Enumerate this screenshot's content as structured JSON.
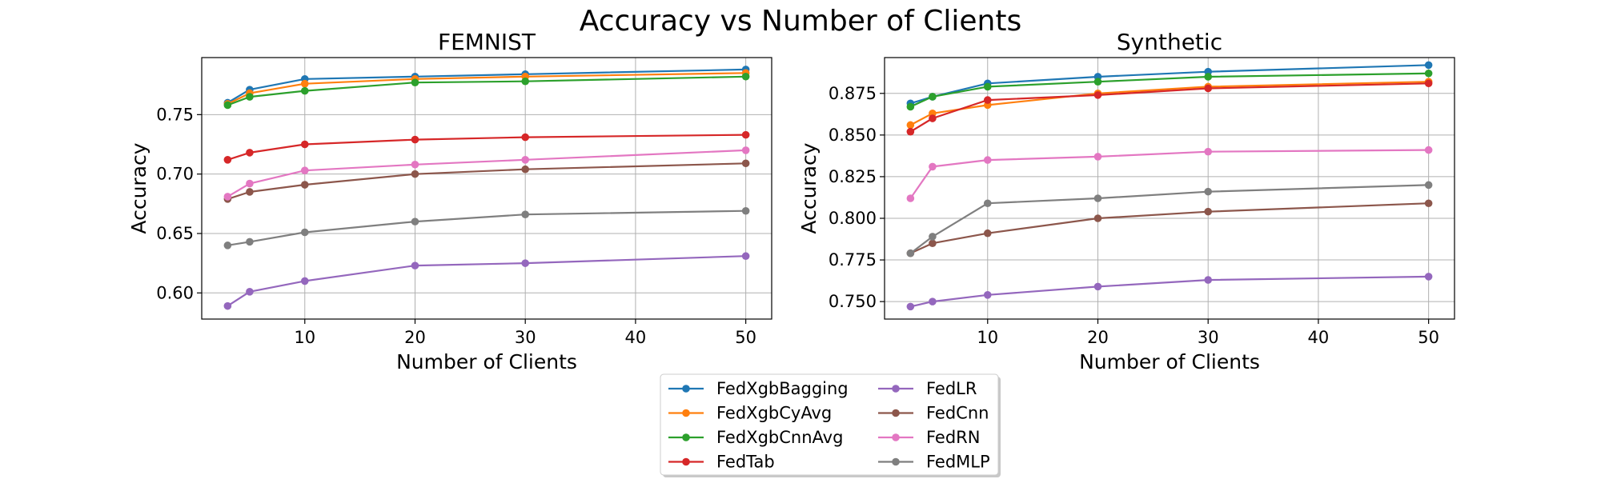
{
  "figure": {
    "suptitle": "Accuracy vs Number of Clients",
    "legend_placement": "bottom-center"
  },
  "chart_data": [
    {
      "type": "line",
      "title": "FEMNIST",
      "xlabel": "Number of Clients",
      "ylabel": "Accuracy",
      "xlim": [
        0.65,
        52.35
      ],
      "ylim": [
        0.578,
        0.798
      ],
      "xticks": [
        10,
        20,
        30,
        40,
        50
      ],
      "yticks": [
        0.6,
        0.65,
        0.7,
        0.75
      ],
      "ytick_labels": [
        "0.60",
        "0.65",
        "0.70",
        "0.75"
      ],
      "grid": true,
      "x": [
        3,
        5,
        10,
        20,
        30,
        50
      ],
      "series": [
        {
          "name": "FedXgbBagging",
          "color": "#1f77b4",
          "values": [
            0.76,
            0.771,
            0.78,
            0.782,
            0.784,
            0.788
          ]
        },
        {
          "name": "FedXgbCyAvg",
          "color": "#ff7f0e",
          "values": [
            0.759,
            0.768,
            0.776,
            0.78,
            0.782,
            0.785
          ]
        },
        {
          "name": "FedXgbCnnAvg",
          "color": "#2ca02c",
          "values": [
            0.758,
            0.765,
            0.77,
            0.777,
            0.778,
            0.782
          ]
        },
        {
          "name": "FedTab",
          "color": "#d62728",
          "values": [
            0.712,
            0.718,
            0.725,
            0.729,
            0.731,
            0.733
          ]
        },
        {
          "name": "FedLR",
          "color": "#9467bd",
          "values": [
            0.589,
            0.601,
            0.61,
            0.623,
            0.625,
            0.631
          ]
        },
        {
          "name": "FedCnn",
          "color": "#8c564b",
          "values": [
            0.679,
            0.685,
            0.691,
            0.7,
            0.704,
            0.709
          ]
        },
        {
          "name": "FedRN",
          "color": "#e377c2",
          "values": [
            0.681,
            0.692,
            0.703,
            0.708,
            0.712,
            0.72
          ]
        },
        {
          "name": "FedMLP",
          "color": "#7f7f7f",
          "values": [
            0.64,
            0.643,
            0.651,
            0.66,
            0.666,
            0.669
          ]
        }
      ]
    },
    {
      "type": "line",
      "title": "Synthetic",
      "xlabel": "Number of Clients",
      "ylabel": "Accuracy",
      "xlim": [
        0.65,
        52.35
      ],
      "ylim": [
        0.7395,
        0.8965
      ],
      "xticks": [
        10,
        20,
        30,
        40,
        50
      ],
      "yticks": [
        0.75,
        0.775,
        0.8,
        0.825,
        0.85,
        0.875
      ],
      "ytick_labels": [
        "0.750",
        "0.775",
        "0.800",
        "0.825",
        "0.850",
        "0.875"
      ],
      "grid": true,
      "x": [
        3,
        5,
        10,
        20,
        30,
        50
      ],
      "series": [
        {
          "name": "FedXgbBagging",
          "color": "#1f77b4",
          "values": [
            0.869,
            0.873,
            0.881,
            0.885,
            0.888,
            0.892
          ]
        },
        {
          "name": "FedXgbCyAvg",
          "color": "#ff7f0e",
          "values": [
            0.856,
            0.863,
            0.868,
            0.875,
            0.879,
            0.882
          ]
        },
        {
          "name": "FedXgbCnnAvg",
          "color": "#2ca02c",
          "values": [
            0.867,
            0.873,
            0.879,
            0.882,
            0.885,
            0.887
          ]
        },
        {
          "name": "FedTab",
          "color": "#d62728",
          "values": [
            0.852,
            0.86,
            0.871,
            0.874,
            0.878,
            0.881
          ]
        },
        {
          "name": "FedLR",
          "color": "#9467bd",
          "values": [
            0.747,
            0.75,
            0.754,
            0.759,
            0.763,
            0.765
          ]
        },
        {
          "name": "FedCnn",
          "color": "#8c564b",
          "values": [
            0.779,
            0.785,
            0.791,
            0.8,
            0.804,
            0.809
          ]
        },
        {
          "name": "FedRN",
          "color": "#e377c2",
          "values": [
            0.812,
            0.831,
            0.835,
            0.837,
            0.84,
            0.841
          ]
        },
        {
          "name": "FedMLP",
          "color": "#7f7f7f",
          "values": [
            0.779,
            0.789,
            0.809,
            0.812,
            0.816,
            0.82
          ]
        }
      ]
    }
  ]
}
